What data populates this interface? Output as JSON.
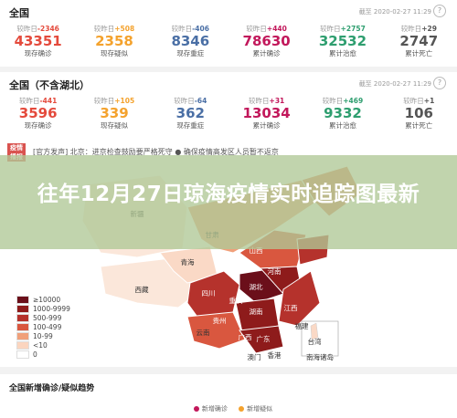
{
  "card1": {
    "title": "全国",
    "time": "截至 2020-02-27 11:29",
    "stats": [
      {
        "delta_label": "较昨日",
        "delta": "-2346",
        "value": "43351",
        "label": "现存确诊",
        "color": "#e44a3c"
      },
      {
        "delta_label": "较昨日",
        "delta": "+508",
        "value": "2358",
        "label": "现存疑似",
        "color": "#f4a22d"
      },
      {
        "delta_label": "较昨日",
        "delta": "-406",
        "value": "8346",
        "label": "现存重症",
        "color": "#4a6fa5"
      },
      {
        "delta_label": "较昨日",
        "delta": "+440",
        "value": "78630",
        "label": "累计确诊",
        "color": "#c2185b"
      },
      {
        "delta_label": "较昨日",
        "delta": "+2757",
        "value": "32532",
        "label": "累计治愈",
        "color": "#2e9e6f"
      },
      {
        "delta_label": "较昨日",
        "delta": "+29",
        "value": "2747",
        "label": "累计死亡",
        "color": "#555555"
      }
    ]
  },
  "card2": {
    "title": "全国（不含湖北）",
    "time": "截至 2020-02-27 11:29",
    "stats": [
      {
        "delta_label": "较昨日",
        "delta": "-441",
        "value": "3596",
        "label": "现存确诊",
        "color": "#e44a3c"
      },
      {
        "delta_label": "较昨日",
        "delta": "+105",
        "value": "339",
        "label": "现存疑似",
        "color": "#f4a22d"
      },
      {
        "delta_label": "较昨日",
        "delta": "-64",
        "value": "362",
        "label": "现存重症",
        "color": "#4a6fa5"
      },
      {
        "delta_label": "较昨日",
        "delta": "+31",
        "value": "13034",
        "label": "累计确诊",
        "color": "#c2185b"
      },
      {
        "delta_label": "较昨日",
        "delta": "+469",
        "value": "9332",
        "label": "累计治愈",
        "color": "#2e9e6f"
      },
      {
        "delta_label": "较昨日",
        "delta": "+1",
        "value": "106",
        "label": "累计死亡",
        "color": "#555555"
      }
    ]
  },
  "news": {
    "badge": "疫情\n播报",
    "text": "[官方发声] 北京：进京检查鼓励要严格死守 ● 确保疫情高发区人员暂不返京"
  },
  "banner": {
    "title": "往年12月27日琼海疫情实时追踪图最新"
  },
  "map": {
    "labels": [
      "新疆",
      "青海",
      "西藏",
      "甘肃",
      "山西",
      "河南",
      "四川",
      "湖北",
      "湖南",
      "重庆",
      "贵州",
      "云南",
      "广西",
      "广东",
      "江西",
      "福建",
      "澳门",
      "香港",
      "台湾",
      "南海诸岛"
    ]
  },
  "legend": [
    {
      "label": "≥10000",
      "color": "#6b0f1a"
    },
    {
      "label": "1000-9999",
      "color": "#8e1b1b"
    },
    {
      "label": "500-999",
      "color": "#b5322c"
    },
    {
      "label": "100-499",
      "color": "#d9573f"
    },
    {
      "label": "10-99",
      "color": "#f0a07a"
    },
    {
      "label": "<10",
      "color": "#fbd5bf"
    },
    {
      "label": "0",
      "color": "#ffffff"
    }
  ],
  "bottom": {
    "title": "全国新增确诊/疑似趋势",
    "legend_a": "新增确诊",
    "legend_b": "新增疑似",
    "color_a": "#c2185b",
    "color_b": "#f4a22d"
  }
}
